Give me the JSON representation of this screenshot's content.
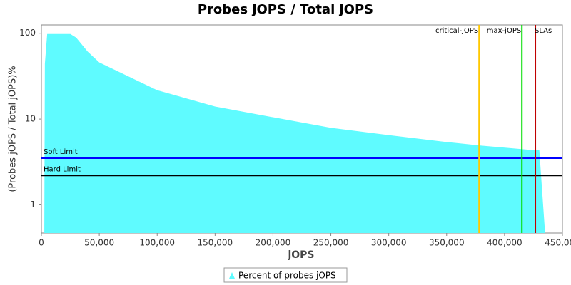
{
  "chart_data": {
    "type": "area",
    "title": "Probes jOPS / Total jOPS",
    "x_label": "jOPS",
    "y_label": "(Probes jOPS / Total jOPS)%",
    "x": [
      2500,
      3000,
      5000,
      25000,
      30000,
      40000,
      50000,
      100000,
      150000,
      200000,
      250000,
      300000,
      350000,
      380000,
      420000,
      430000,
      435000
    ],
    "series": [
      {
        "name": "Percent of probes jOPS",
        "color": "#5ffbff",
        "values": [
          0.47,
          44,
          98,
          98,
          89,
          61,
          45.7,
          21.7,
          14,
          10.5,
          7.9,
          6.5,
          5.4,
          4.9,
          4.4,
          4.4,
          0.47
        ]
      }
    ],
    "xlim": [
      0,
      450000
    ],
    "xticks": [
      0,
      {
        "value": 50000,
        "label": "50,000"
      },
      {
        "value": 100000,
        "label": "100,000"
      },
      {
        "value": 150000,
        "label": "150,000"
      },
      {
        "value": 200000,
        "label": "200,000"
      },
      {
        "value": 250000,
        "label": "250,000"
      },
      {
        "value": 300000,
        "label": "300,000"
      },
      {
        "value": 350000,
        "label": "350,000"
      },
      {
        "value": 400000,
        "label": "400,000"
      },
      {
        "value": 450000,
        "label": "450,000"
      }
    ],
    "ylim": [
      0.47,
      125
    ],
    "yticks": [
      1,
      10,
      100
    ],
    "log_y": true,
    "hlines": [
      {
        "label": "Soft Limit",
        "value": 3.5,
        "color": "#0000ff"
      },
      {
        "label": "Hard Limit",
        "value": 2.2,
        "color": "#000000"
      }
    ],
    "vlines": [
      {
        "label": "critical-jOPS",
        "value": 378000,
        "color": "#ffc800"
      },
      {
        "label": "max-jOPS",
        "value": 415000,
        "color": "#00dd00"
      },
      {
        "label": "SLAs",
        "value": 426600,
        "color": "#c00000"
      }
    ]
  }
}
